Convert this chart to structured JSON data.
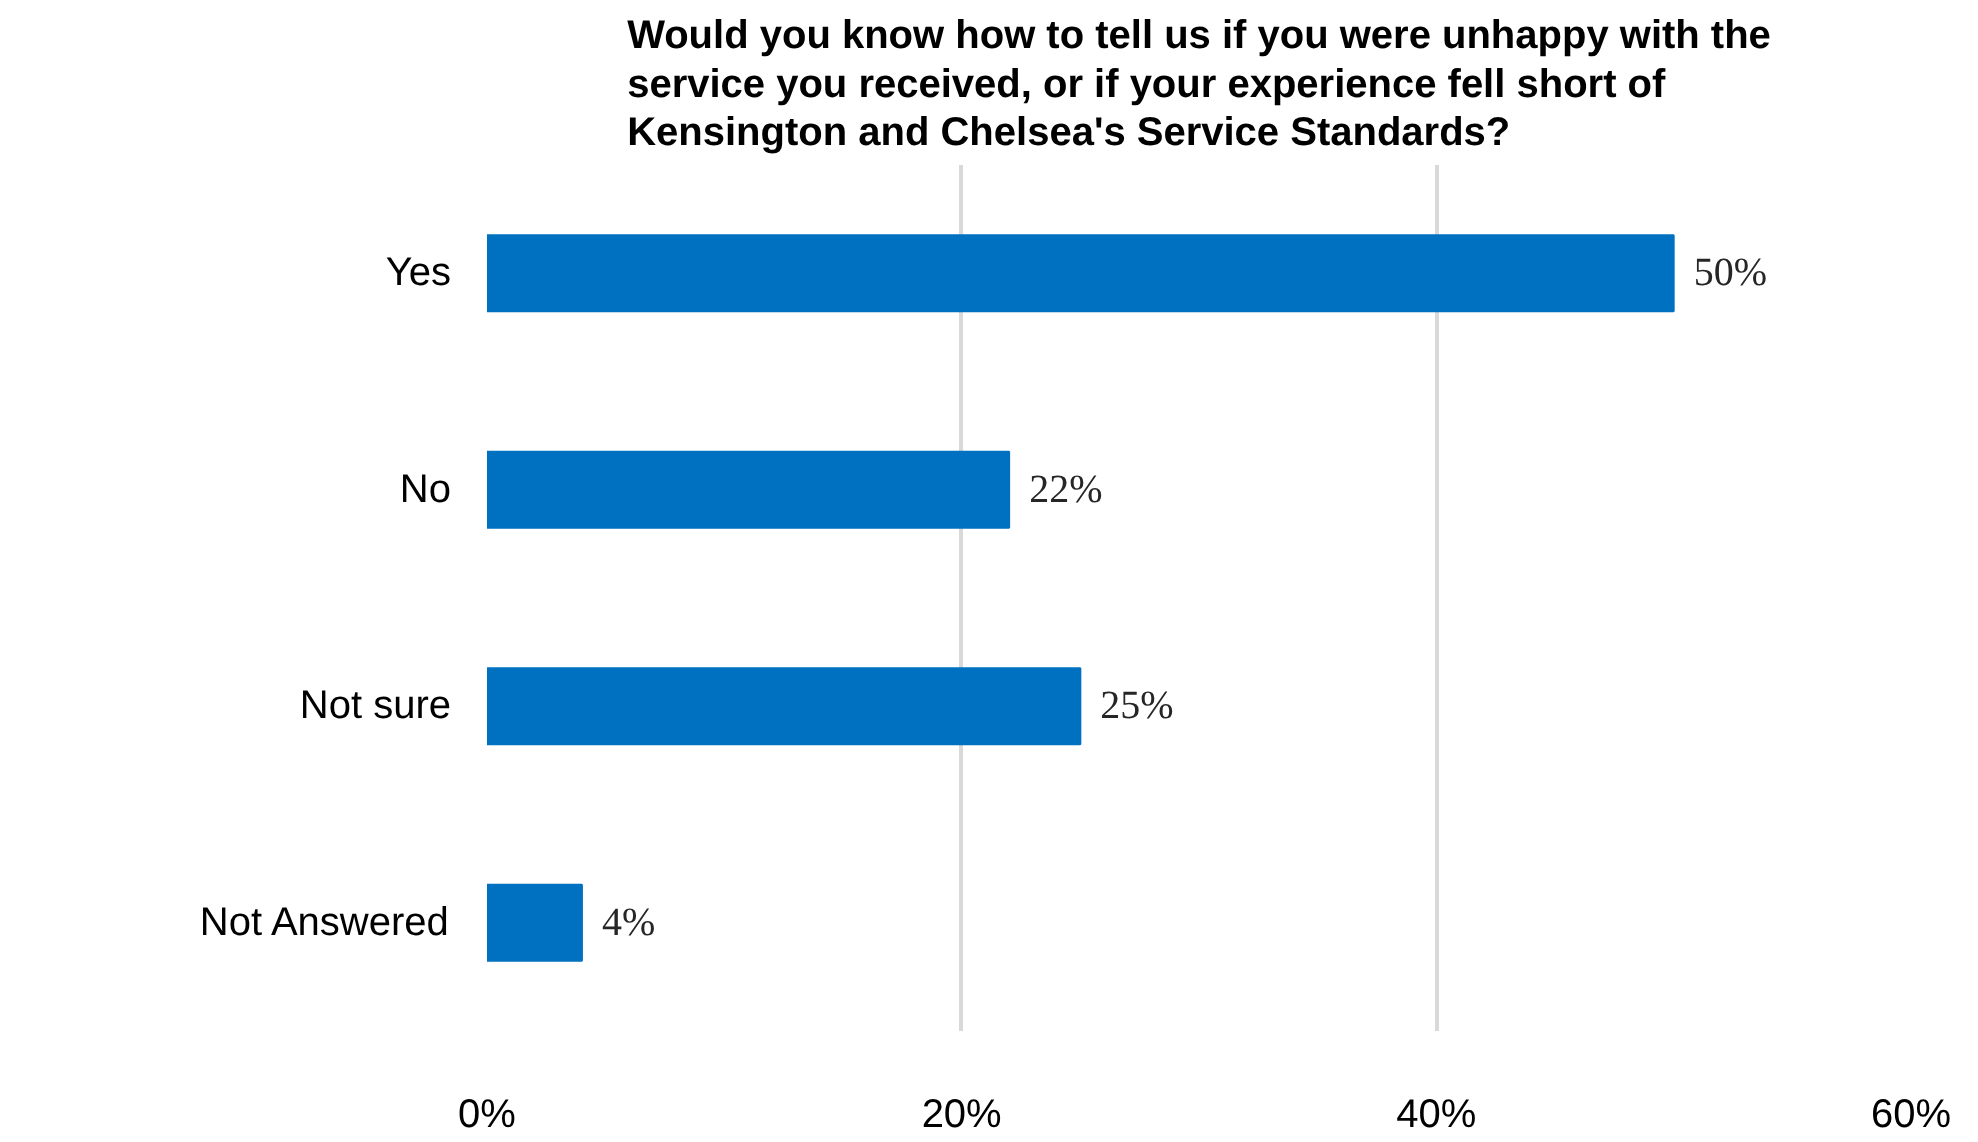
{
  "chart_data": {
    "type": "bar",
    "orientation": "horizontal",
    "title": "Would you know how to tell us if you were unhappy with the service you received, or if your experience fell short of Kensington and Chelsea's Service Standards?",
    "categories": [
      "Yes",
      "No",
      "Not sure",
      "Not Answered"
    ],
    "values": [
      50,
      22,
      25,
      4
    ],
    "value_labels": [
      "50%",
      "22%",
      "25%",
      "4%"
    ],
    "color": "#0070c0",
    "xlim": [
      0,
      60
    ],
    "xticks": [
      {
        "value": 0,
        "label": "0%"
      },
      {
        "value": 20,
        "label": "20%"
      },
      {
        "value": 40,
        "label": "40%"
      },
      {
        "value": 60,
        "label": "60%"
      }
    ],
    "grid": "x"
  }
}
